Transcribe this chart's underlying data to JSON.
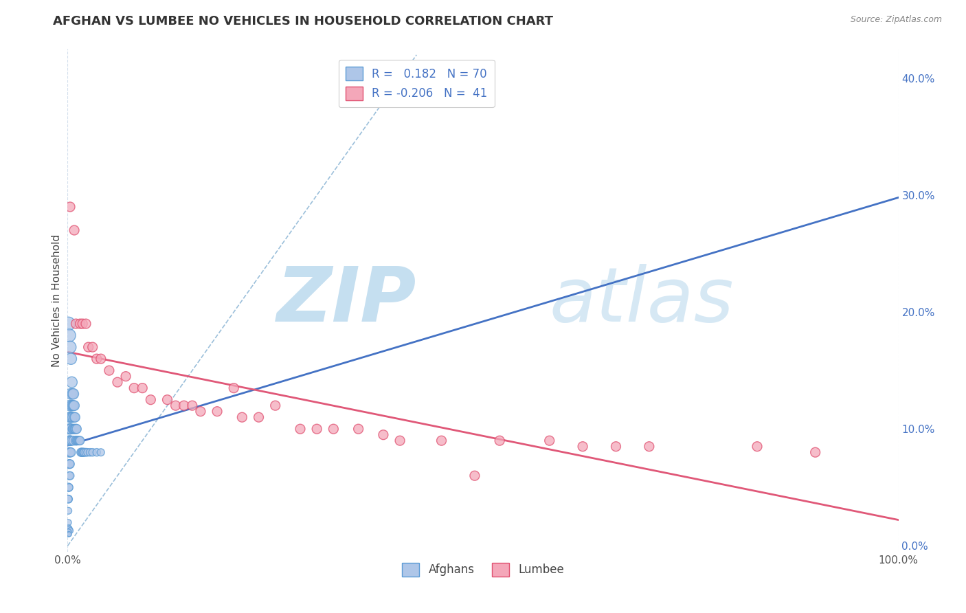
{
  "title": "AFGHAN VS LUMBEE NO VEHICLES IN HOUSEHOLD CORRELATION CHART",
  "source": "Source: ZipAtlas.com",
  "ylabel_label": "No Vehicles in Household",
  "xmin": 0.0,
  "xmax": 1.0,
  "ymin": -0.005,
  "ymax": 0.425,
  "afghan_R": 0.182,
  "afghan_N": 70,
  "lumbee_R": -0.206,
  "lumbee_N": 41,
  "afghan_color": "#aec6e8",
  "lumbee_color": "#f4a7b9",
  "afghan_edge_color": "#5b9bd5",
  "lumbee_edge_color": "#e05070",
  "trend_afghan_color": "#4472c4",
  "trend_lumbee_color": "#e05878",
  "diagonal_color": "#8ab4d4",
  "background_color": "#ffffff",
  "watermark_zip": "ZIP",
  "watermark_atlas": "atlas",
  "watermark_color": "#c5dff0",
  "right_ytick_values": [
    0.0,
    0.1,
    0.2,
    0.3,
    0.4
  ],
  "right_ytick_labels": [
    "0.0%",
    "10.0%",
    "20.0%",
    "30.0%",
    "40.0%"
  ],
  "afghan_points_x": [
    0.001,
    0.001,
    0.001,
    0.001,
    0.001,
    0.002,
    0.002,
    0.002,
    0.002,
    0.002,
    0.002,
    0.002,
    0.003,
    0.003,
    0.003,
    0.003,
    0.003,
    0.003,
    0.003,
    0.004,
    0.004,
    0.004,
    0.004,
    0.004,
    0.005,
    0.005,
    0.005,
    0.005,
    0.006,
    0.006,
    0.006,
    0.006,
    0.007,
    0.007,
    0.007,
    0.007,
    0.008,
    0.008,
    0.008,
    0.009,
    0.009,
    0.01,
    0.01,
    0.011,
    0.011,
    0.012,
    0.013,
    0.014,
    0.015,
    0.016,
    0.017,
    0.018,
    0.019,
    0.02,
    0.022,
    0.024,
    0.027,
    0.03,
    0.035,
    0.04,
    0.001,
    0.002,
    0.003,
    0.004,
    0.001,
    0.002,
    0.003,
    0.001,
    0.001,
    0.002
  ],
  "afghan_points_y": [
    0.05,
    0.04,
    0.04,
    0.03,
    0.02,
    0.1,
    0.09,
    0.08,
    0.07,
    0.07,
    0.06,
    0.05,
    0.12,
    0.11,
    0.1,
    0.09,
    0.08,
    0.07,
    0.06,
    0.13,
    0.11,
    0.1,
    0.09,
    0.08,
    0.14,
    0.12,
    0.11,
    0.09,
    0.13,
    0.12,
    0.11,
    0.1,
    0.13,
    0.12,
    0.1,
    0.09,
    0.12,
    0.11,
    0.1,
    0.11,
    0.1,
    0.1,
    0.09,
    0.1,
    0.09,
    0.09,
    0.09,
    0.09,
    0.09,
    0.08,
    0.08,
    0.08,
    0.08,
    0.08,
    0.08,
    0.08,
    0.08,
    0.08,
    0.08,
    0.08,
    0.19,
    0.18,
    0.17,
    0.16,
    0.015,
    0.014,
    0.013,
    0.012,
    0.01,
    0.01
  ],
  "afghan_sizes": [
    80,
    70,
    60,
    50,
    40,
    120,
    110,
    100,
    90,
    80,
    70,
    60,
    130,
    120,
    110,
    100,
    90,
    80,
    70,
    130,
    120,
    110,
    100,
    90,
    130,
    120,
    110,
    90,
    120,
    110,
    100,
    90,
    120,
    110,
    100,
    90,
    110,
    100,
    90,
    100,
    90,
    100,
    90,
    90,
    80,
    80,
    80,
    80,
    80,
    75,
    75,
    75,
    70,
    70,
    70,
    65,
    65,
    65,
    65,
    60,
    200,
    180,
    160,
    140,
    50,
    45,
    40,
    35,
    30,
    25
  ],
  "lumbee_points_x": [
    0.003,
    0.008,
    0.01,
    0.015,
    0.018,
    0.022,
    0.025,
    0.03,
    0.035,
    0.04,
    0.05,
    0.06,
    0.07,
    0.08,
    0.09,
    0.1,
    0.12,
    0.13,
    0.14,
    0.15,
    0.16,
    0.18,
    0.2,
    0.21,
    0.23,
    0.25,
    0.28,
    0.3,
    0.32,
    0.35,
    0.38,
    0.4,
    0.45,
    0.49,
    0.52,
    0.58,
    0.62,
    0.66,
    0.7,
    0.83,
    0.9
  ],
  "lumbee_points_y": [
    0.29,
    0.27,
    0.19,
    0.19,
    0.19,
    0.19,
    0.17,
    0.17,
    0.16,
    0.16,
    0.15,
    0.14,
    0.145,
    0.135,
    0.135,
    0.125,
    0.125,
    0.12,
    0.12,
    0.12,
    0.115,
    0.115,
    0.135,
    0.11,
    0.11,
    0.12,
    0.1,
    0.1,
    0.1,
    0.1,
    0.095,
    0.09,
    0.09,
    0.06,
    0.09,
    0.09,
    0.085,
    0.085,
    0.085,
    0.085,
    0.08
  ],
  "lumbee_sizes": [
    100,
    100,
    100,
    100,
    100,
    100,
    100,
    100,
    100,
    100,
    100,
    100,
    100,
    100,
    100,
    100,
    100,
    100,
    100,
    100,
    100,
    100,
    100,
    100,
    100,
    100,
    100,
    100,
    100,
    100,
    100,
    100,
    100,
    100,
    100,
    100,
    100,
    100,
    100,
    100,
    100
  ]
}
